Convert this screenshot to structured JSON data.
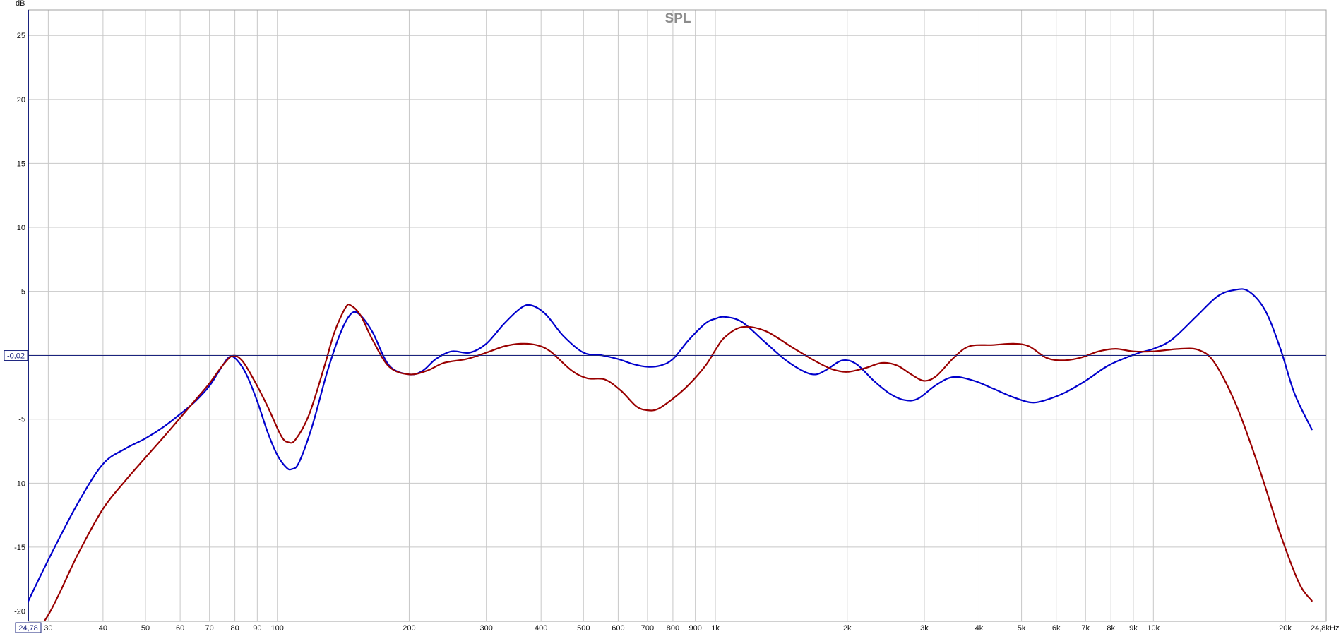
{
  "chart_data": {
    "type": "line",
    "title": "SPL",
    "xlabel": "Hz",
    "ylabel": "dB",
    "xscale": "log",
    "xlim": [
      27,
      24800
    ],
    "ylim": [
      -20.8,
      27
    ],
    "grid": true,
    "x_ticks": [
      {
        "value": 30,
        "label": "30"
      },
      {
        "value": 40,
        "label": "40"
      },
      {
        "value": 50,
        "label": "50"
      },
      {
        "value": 60,
        "label": "60"
      },
      {
        "value": 70,
        "label": "70"
      },
      {
        "value": 80,
        "label": "80"
      },
      {
        "value": 90,
        "label": "90"
      },
      {
        "value": 100,
        "label": "100"
      },
      {
        "value": 200,
        "label": "200"
      },
      {
        "value": 300,
        "label": "300"
      },
      {
        "value": 400,
        "label": "400"
      },
      {
        "value": 500,
        "label": "500"
      },
      {
        "value": 600,
        "label": "600"
      },
      {
        "value": 700,
        "label": "700"
      },
      {
        "value": 800,
        "label": "800"
      },
      {
        "value": 900,
        "label": "900"
      },
      {
        "value": 1000,
        "label": "1k"
      },
      {
        "value": 2000,
        "label": "2k"
      },
      {
        "value": 3000,
        "label": "3k"
      },
      {
        "value": 4000,
        "label": "4k"
      },
      {
        "value": 5000,
        "label": "5k"
      },
      {
        "value": 6000,
        "label": "6k"
      },
      {
        "value": 7000,
        "label": "7k"
      },
      {
        "value": 8000,
        "label": "8k"
      },
      {
        "value": 9000,
        "label": "9k"
      },
      {
        "value": 10000,
        "label": "10k"
      },
      {
        "value": 20000,
        "label": "20k"
      }
    ],
    "x_end_label": "24,8k",
    "x_start_label": "24,78",
    "y_ticks": [
      25,
      20,
      15,
      10,
      5,
      0,
      -5,
      -10,
      -15,
      -20
    ],
    "y_tick_labels": [
      "25",
      "20",
      "15",
      "10",
      "5",
      "",
      "-5",
      "-10",
      "-15",
      "-20"
    ],
    "cursor": {
      "value": -0.02,
      "label": "-0,02",
      "color": "#1a237e"
    },
    "series": [
      {
        "color": "#0000cc",
        "points": [
          [
            25.5,
            -21
          ],
          [
            30,
            -16
          ],
          [
            35,
            -11.6
          ],
          [
            40,
            -8.5
          ],
          [
            45,
            -7.3
          ],
          [
            50,
            -6.5
          ],
          [
            55,
            -5.6
          ],
          [
            60,
            -4.6
          ],
          [
            65,
            -3.6
          ],
          [
            70,
            -2.4
          ],
          [
            75,
            -0.8
          ],
          [
            78,
            -0.1
          ],
          [
            81,
            -0.4
          ],
          [
            85,
            -1.5
          ],
          [
            90,
            -3.6
          ],
          [
            95,
            -6.0
          ],
          [
            100,
            -7.8
          ],
          [
            105,
            -8.8
          ],
          [
            108,
            -8.9
          ],
          [
            112,
            -8.4
          ],
          [
            120,
            -5.6
          ],
          [
            130,
            -1.3
          ],
          [
            140,
            1.9
          ],
          [
            148,
            3.3
          ],
          [
            155,
            3.1
          ],
          [
            165,
            1.8
          ],
          [
            180,
            -0.8
          ],
          [
            200,
            -1.5
          ],
          [
            215,
            -1.2
          ],
          [
            230,
            -0.3
          ],
          [
            250,
            0.3
          ],
          [
            275,
            0.2
          ],
          [
            300,
            0.9
          ],
          [
            330,
            2.5
          ],
          [
            360,
            3.7
          ],
          [
            380,
            3.9
          ],
          [
            410,
            3.2
          ],
          [
            450,
            1.5
          ],
          [
            500,
            0.2
          ],
          [
            550,
            0.0
          ],
          [
            600,
            -0.3
          ],
          [
            650,
            -0.7
          ],
          [
            700,
            -0.9
          ],
          [
            750,
            -0.8
          ],
          [
            800,
            -0.3
          ],
          [
            870,
            1.2
          ],
          [
            950,
            2.5
          ],
          [
            1000,
            2.85
          ],
          [
            1050,
            3.0
          ],
          [
            1150,
            2.6
          ],
          [
            1300,
            1.0
          ],
          [
            1450,
            -0.4
          ],
          [
            1600,
            -1.3
          ],
          [
            1700,
            -1.5
          ],
          [
            1800,
            -1.1
          ],
          [
            1950,
            -0.4
          ],
          [
            2100,
            -0.7
          ],
          [
            2300,
            -2.0
          ],
          [
            2500,
            -3.0
          ],
          [
            2700,
            -3.5
          ],
          [
            2900,
            -3.4
          ],
          [
            3200,
            -2.3
          ],
          [
            3500,
            -1.7
          ],
          [
            3900,
            -2.0
          ],
          [
            4300,
            -2.6
          ],
          [
            4800,
            -3.3
          ],
          [
            5300,
            -3.7
          ],
          [
            5800,
            -3.4
          ],
          [
            6300,
            -2.9
          ],
          [
            7000,
            -2.0
          ],
          [
            7800,
            -0.9
          ],
          [
            8500,
            -0.3
          ],
          [
            9300,
            0.2
          ],
          [
            10000,
            0.5
          ],
          [
            11000,
            1.2
          ],
          [
            12500,
            3.0
          ],
          [
            14000,
            4.6
          ],
          [
            15300,
            5.1
          ],
          [
            16500,
            5.0
          ],
          [
            18000,
            3.5
          ],
          [
            19500,
            0.5
          ],
          [
            21000,
            -3.0
          ],
          [
            23000,
            -5.8
          ]
        ]
      },
      {
        "color": "#990000",
        "points": [
          [
            25.5,
            -23.5
          ],
          [
            30,
            -20.3
          ],
          [
            35,
            -15.6
          ],
          [
            40,
            -12.0
          ],
          [
            45,
            -9.8
          ],
          [
            50,
            -8.0
          ],
          [
            55,
            -6.4
          ],
          [
            60,
            -4.9
          ],
          [
            65,
            -3.5
          ],
          [
            70,
            -2.2
          ],
          [
            75,
            -0.8
          ],
          [
            79,
            -0.05
          ],
          [
            83,
            -0.4
          ],
          [
            88,
            -1.8
          ],
          [
            95,
            -4.0
          ],
          [
            102,
            -6.3
          ],
          [
            106,
            -6.8
          ],
          [
            110,
            -6.6
          ],
          [
            118,
            -4.7
          ],
          [
            128,
            -0.9
          ],
          [
            135,
            1.8
          ],
          [
            143,
            3.7
          ],
          [
            147,
            3.9
          ],
          [
            155,
            3.1
          ],
          [
            165,
            1.2
          ],
          [
            180,
            -0.9
          ],
          [
            200,
            -1.5
          ],
          [
            220,
            -1.2
          ],
          [
            240,
            -0.6
          ],
          [
            270,
            -0.3
          ],
          [
            300,
            0.2
          ],
          [
            330,
            0.7
          ],
          [
            360,
            0.9
          ],
          [
            390,
            0.8
          ],
          [
            420,
            0.3
          ],
          [
            470,
            -1.2
          ],
          [
            510,
            -1.8
          ],
          [
            560,
            -1.9
          ],
          [
            610,
            -2.8
          ],
          [
            660,
            -4.0
          ],
          [
            700,
            -4.3
          ],
          [
            740,
            -4.2
          ],
          [
            800,
            -3.4
          ],
          [
            870,
            -2.3
          ],
          [
            950,
            -0.8
          ],
          [
            1000,
            0.4
          ],
          [
            1050,
            1.4
          ],
          [
            1150,
            2.2
          ],
          [
            1300,
            1.9
          ],
          [
            1500,
            0.6
          ],
          [
            1700,
            -0.5
          ],
          [
            1850,
            -1.1
          ],
          [
            2000,
            -1.3
          ],
          [
            2200,
            -1.0
          ],
          [
            2400,
            -0.6
          ],
          [
            2600,
            -0.8
          ],
          [
            2800,
            -1.5
          ],
          [
            3000,
            -2.0
          ],
          [
            3200,
            -1.6
          ],
          [
            3500,
            -0.2
          ],
          [
            3800,
            0.7
          ],
          [
            4300,
            0.8
          ],
          [
            4800,
            0.9
          ],
          [
            5200,
            0.7
          ],
          [
            5700,
            -0.2
          ],
          [
            6200,
            -0.4
          ],
          [
            6800,
            -0.2
          ],
          [
            7500,
            0.3
          ],
          [
            8200,
            0.5
          ],
          [
            9000,
            0.3
          ],
          [
            10000,
            0.3
          ],
          [
            11500,
            0.5
          ],
          [
            12700,
            0.4
          ],
          [
            13800,
            -0.6
          ],
          [
            15500,
            -4.0
          ],
          [
            17500,
            -9.0
          ],
          [
            19500,
            -14.0
          ],
          [
            21500,
            -17.8
          ],
          [
            23000,
            -19.2
          ]
        ]
      }
    ]
  }
}
